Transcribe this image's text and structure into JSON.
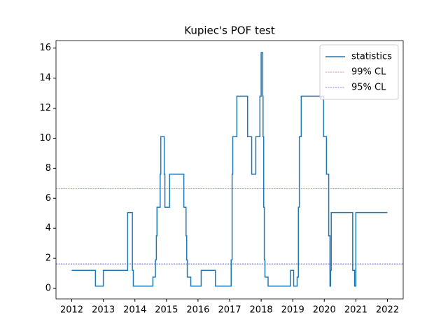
{
  "chart_data": {
    "type": "line",
    "title": "Kupiec's POF test",
    "drawstyle": "steps-post",
    "x": [
      2012.0,
      2012.75,
      2013.0,
      2013.77,
      2013.92,
      2013.95,
      2014.57,
      2014.65,
      2014.68,
      2014.7,
      2014.8,
      2014.82,
      2014.93,
      2014.95,
      2015.1,
      2015.55,
      2015.62,
      2015.64,
      2015.66,
      2015.77,
      2016.1,
      2016.55,
      2017.05,
      2017.08,
      2017.1,
      2017.23,
      2017.57,
      2017.7,
      2017.83,
      2017.96,
      2018.0,
      2018.05,
      2018.06,
      2018.08,
      2018.1,
      2018.12,
      2018.22,
      2018.93,
      2019.03,
      2019.14,
      2019.18,
      2019.21,
      2019.27,
      2019.98,
      2020.07,
      2020.14,
      2020.18,
      2020.2,
      2020.22,
      2020.9,
      2020.96,
      2021.0,
      2022.0
    ],
    "series": [
      {
        "name": "statistics",
        "color": "#1f77b4",
        "values": [
          1.2,
          0.15,
          1.2,
          5.05,
          1.2,
          0.15,
          0.75,
          1.9,
          3.5,
          5.4,
          7.6,
          10.1,
          7.6,
          5.4,
          7.6,
          5.4,
          3.5,
          1.9,
          0.75,
          0.15,
          1.2,
          0.15,
          1.9,
          7.6,
          10.1,
          12.8,
          10.1,
          7.6,
          10.1,
          12.8,
          15.7,
          12.8,
          10.1,
          5.4,
          1.9,
          0.75,
          0.15,
          1.2,
          0.15,
          0.75,
          5.4,
          10.1,
          12.8,
          10.1,
          7.6,
          3.5,
          0.15,
          1.2,
          5.05,
          1.2,
          0.15,
          5.05,
          5.05
        ]
      }
    ],
    "hlines": [
      {
        "name": "99% CL",
        "color": "#ff0000",
        "value": 6.63
      },
      {
        "name": "95% CL",
        "color": "#0000ff",
        "value": 1.63
      }
    ],
    "xlim": [
      2011.5,
      2022.5
    ],
    "xticks": [
      2012,
      2013,
      2014,
      2015,
      2016,
      2017,
      2018,
      2019,
      2020,
      2021,
      2022
    ],
    "ylim": [
      -0.7,
      16.5
    ],
    "yticks": [
      0,
      2,
      4,
      6,
      8,
      10,
      12,
      14,
      16
    ],
    "legend": "upper right"
  }
}
